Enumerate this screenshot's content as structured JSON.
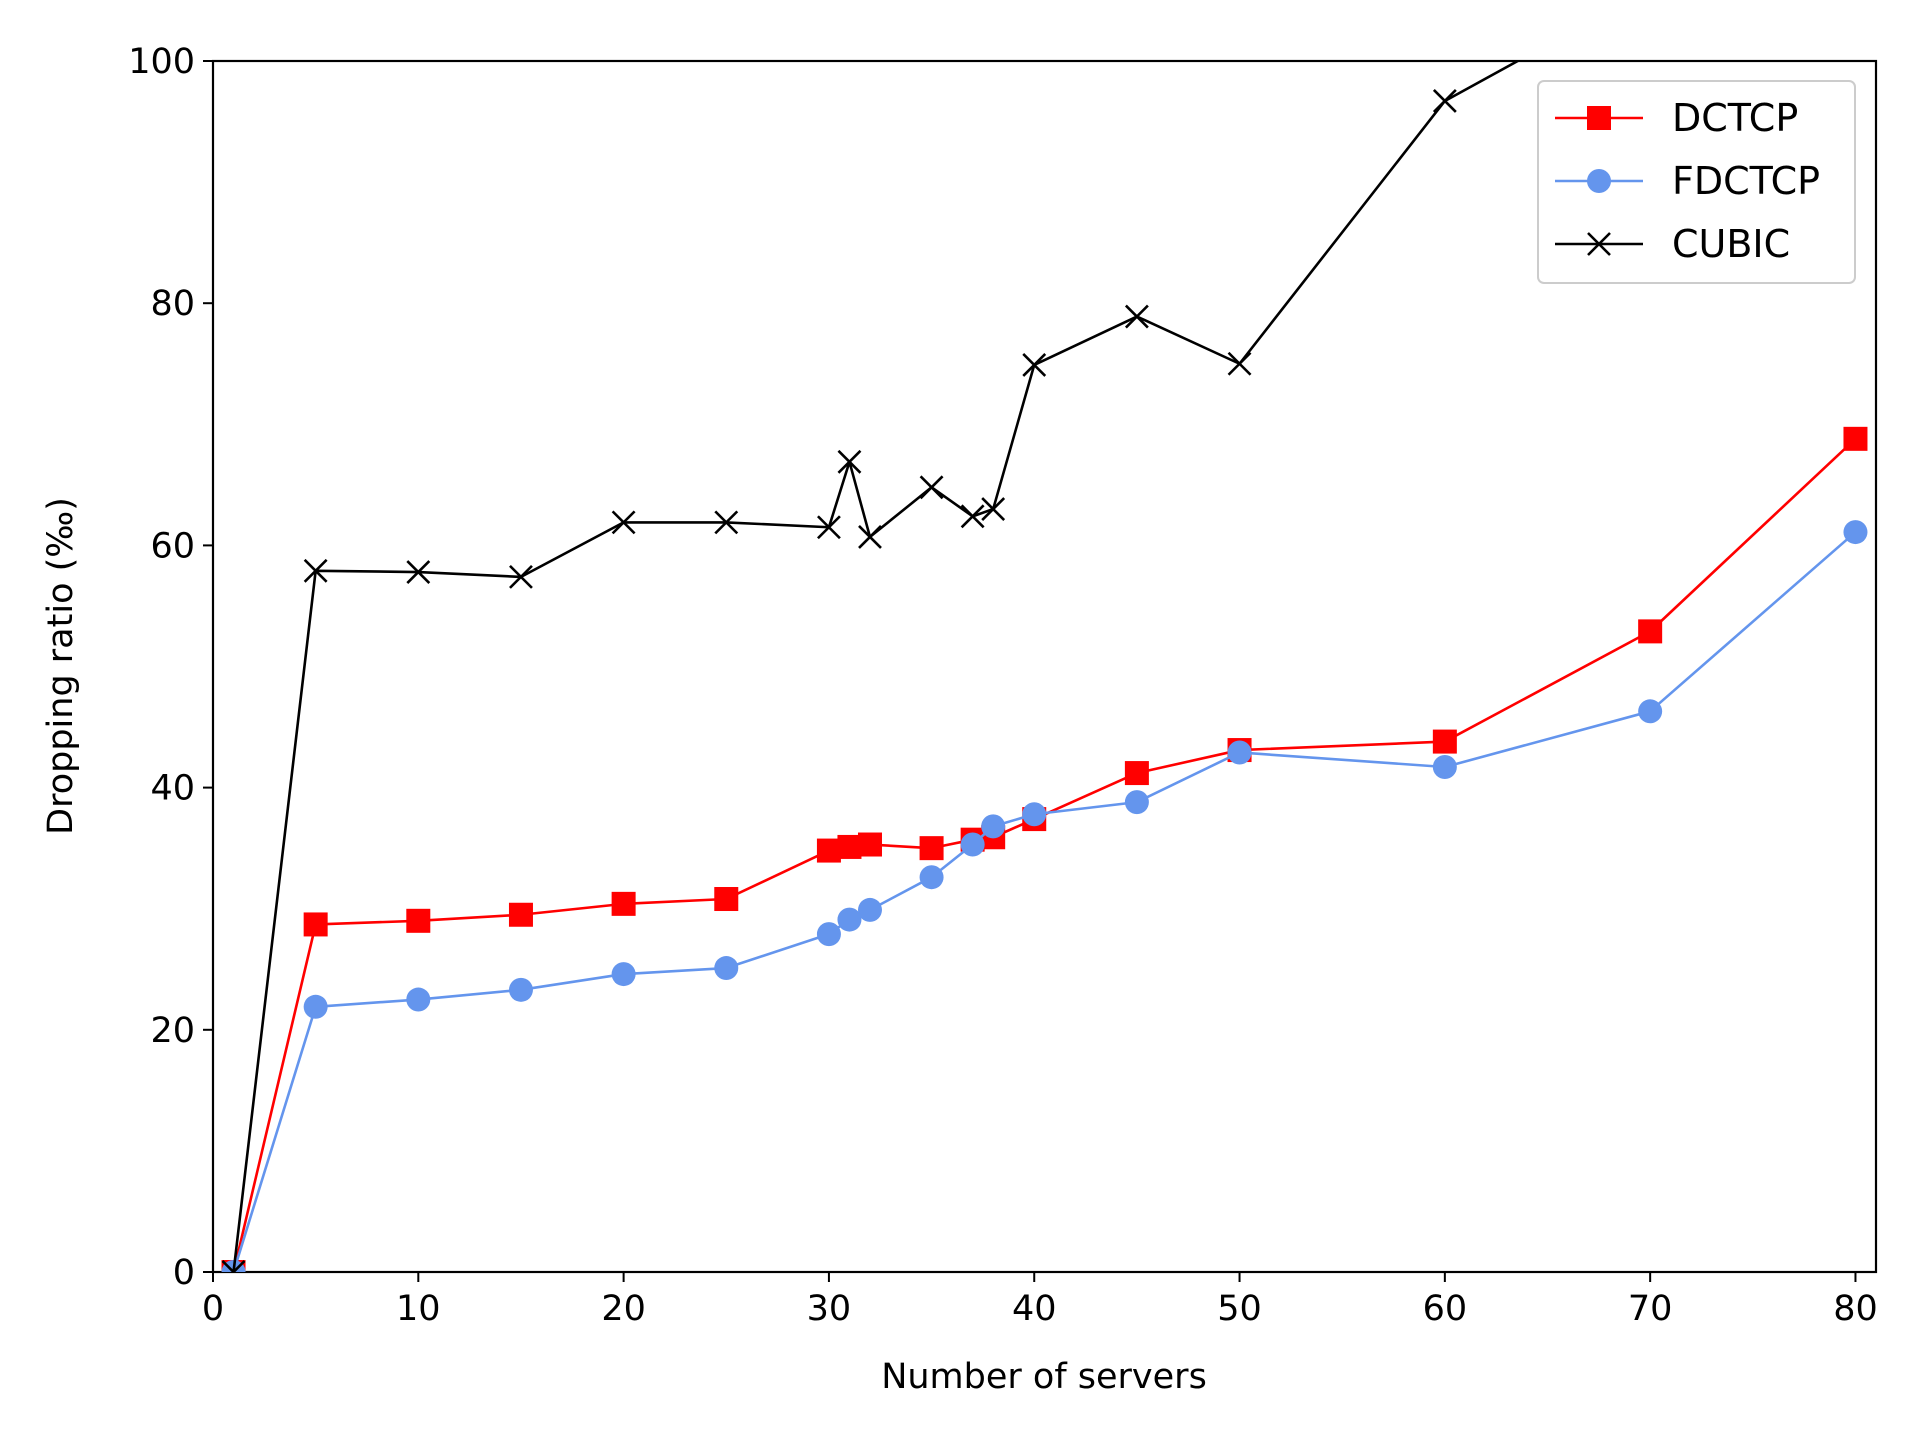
{
  "chart_data": {
    "type": "line",
    "title": "",
    "xlabel": "Number of servers",
    "ylabel": "Dropping ratio (‰)",
    "xlim": [
      0,
      81
    ],
    "ylim": [
      0,
      100
    ],
    "xticks": [
      0,
      10,
      20,
      30,
      40,
      50,
      60,
      70,
      80
    ],
    "yticks": [
      0,
      20,
      40,
      60,
      80,
      100
    ],
    "legend_position": "top-right",
    "grid": false,
    "series": [
      {
        "name": "DCTCP",
        "color": "#ff0000",
        "marker": "square",
        "x": [
          1,
          5,
          10,
          15,
          20,
          25,
          30,
          31,
          32,
          35,
          37,
          38,
          40,
          45,
          50,
          60,
          70,
          80
        ],
        "y": [
          0,
          28.7,
          29.0,
          29.5,
          30.4,
          30.8,
          34.8,
          35.1,
          35.3,
          35.0,
          35.7,
          35.9,
          37.4,
          41.2,
          43.1,
          43.8,
          52.9,
          68.8
        ]
      },
      {
        "name": "FDCTCP",
        "color": "#6495ed",
        "marker": "circle",
        "x": [
          1,
          5,
          10,
          15,
          20,
          25,
          30,
          31,
          32,
          35,
          37,
          38,
          40,
          45,
          50,
          60,
          70,
          80
        ],
        "y": [
          0,
          21.9,
          22.5,
          23.3,
          24.6,
          25.1,
          27.9,
          29.1,
          29.9,
          32.6,
          35.3,
          36.8,
          37.8,
          38.8,
          42.9,
          41.7,
          46.3,
          61.1
        ]
      },
      {
        "name": "CUBIC",
        "color": "#000000",
        "marker": "x",
        "x": [
          1,
          5,
          10,
          15,
          20,
          25,
          30,
          31,
          32,
          35,
          37,
          38,
          40,
          45,
          50,
          60,
          70
        ],
        "y": [
          0,
          57.9,
          57.8,
          57.4,
          61.9,
          61.9,
          61.5,
          66.9,
          60.7,
          64.8,
          62.4,
          63.0,
          74.9,
          78.9,
          75.0,
          96.7,
          106.0
        ]
      }
    ]
  }
}
